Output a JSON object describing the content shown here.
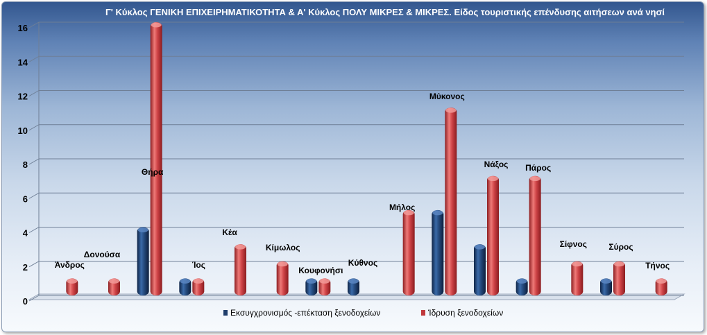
{
  "chart_data": {
    "type": "bar",
    "title": "Γ' Κύκλος ΓΕΝΙΚΗ ΕΠΙΧΕΙΡΗΜΑΤΙΚΟΤΗΤΑ & Α' Κύκλος ΠΟΛΥ ΜΙΚΡΕΣ & ΜΙΚΡΕΣ. Είδος τουριστικής επένδυσης  αιτήσεων ανά νησί",
    "categories": [
      "Άνδρος",
      "Δονούσα",
      "Θήρα",
      "Ίος",
      "Κέα",
      "Κίμωλος",
      "Κουφονήσι",
      "Κύθνος",
      "Μήλος",
      "Μύκονος",
      "Νάξος",
      "Πάρος",
      "Σίφνος",
      "Σύρος",
      "Τήνος"
    ],
    "series": [
      {
        "name": "Εκσυγχρονισμός -επέκταση ξενοδοχείων",
        "color": "#1f3d6b",
        "values": [
          0,
          0,
          4,
          1,
          0,
          0,
          1,
          1,
          0,
          5,
          3,
          1,
          0,
          1,
          0
        ]
      },
      {
        "name": "Ίδρυση ξενοδοχείων",
        "color": "#c0393c",
        "values": [
          1,
          1,
          16,
          1,
          3,
          2,
          1,
          0,
          5,
          11,
          7,
          7,
          2,
          2,
          1
        ]
      }
    ],
    "yticks": [
      "0",
      "2",
      "4",
      "6",
      "8",
      "10",
      "12",
      "14",
      "16"
    ],
    "ylim": [
      0,
      16
    ],
    "grid": true,
    "legend_position": "bottom"
  }
}
